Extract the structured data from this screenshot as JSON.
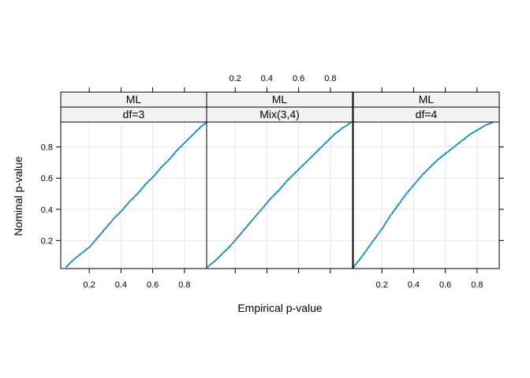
{
  "chart_data": {
    "type": "line",
    "layout": "trellis 3x1, shared axes",
    "xlabel": "Empirical p-value",
    "ylabel": "Nominal p-value",
    "xlim": [
      0.02,
      0.94
    ],
    "ylim": [
      0.02,
      0.96
    ],
    "x_ticks": [
      0.2,
      0.4,
      0.6,
      0.8
    ],
    "y_ticks": [
      0.2,
      0.4,
      0.6,
      0.8
    ],
    "grid": true,
    "line_color": "#0080b0",
    "strip_color": "#f2f2f2",
    "grid_color": "#e6e6e6",
    "panels": [
      {
        "strip1": "ML",
        "strip2": "df=3",
        "x_axis_side": "bottom",
        "x": [
          0.05,
          0.1,
          0.15,
          0.2,
          0.25,
          0.3,
          0.35,
          0.4,
          0.45,
          0.5,
          0.55,
          0.6,
          0.65,
          0.7,
          0.75,
          0.8,
          0.85,
          0.9,
          0.94
        ],
        "y": [
          0.03,
          0.08,
          0.12,
          0.16,
          0.22,
          0.28,
          0.34,
          0.39,
          0.45,
          0.5,
          0.56,
          0.61,
          0.67,
          0.72,
          0.78,
          0.83,
          0.88,
          0.93,
          0.96
        ]
      },
      {
        "strip1": "ML",
        "strip2": "Mix(3,4)",
        "x_axis_side": "top",
        "x": [
          0.02,
          0.07,
          0.12,
          0.17,
          0.22,
          0.27,
          0.32,
          0.37,
          0.42,
          0.47,
          0.52,
          0.57,
          0.62,
          0.67,
          0.72,
          0.77,
          0.82,
          0.87,
          0.93
        ],
        "y": [
          0.03,
          0.07,
          0.12,
          0.17,
          0.23,
          0.29,
          0.35,
          0.41,
          0.47,
          0.52,
          0.58,
          0.63,
          0.68,
          0.73,
          0.78,
          0.83,
          0.88,
          0.92,
          0.96
        ]
      },
      {
        "strip1": "ML",
        "strip2": "df=4",
        "x_axis_side": "bottom",
        "x": [
          0.02,
          0.05,
          0.1,
          0.15,
          0.2,
          0.25,
          0.3,
          0.35,
          0.4,
          0.45,
          0.5,
          0.55,
          0.6,
          0.65,
          0.7,
          0.75,
          0.8,
          0.85,
          0.9
        ],
        "y": [
          0.03,
          0.07,
          0.14,
          0.21,
          0.28,
          0.36,
          0.43,
          0.5,
          0.56,
          0.62,
          0.67,
          0.72,
          0.76,
          0.8,
          0.84,
          0.88,
          0.91,
          0.94,
          0.96
        ]
      }
    ]
  }
}
